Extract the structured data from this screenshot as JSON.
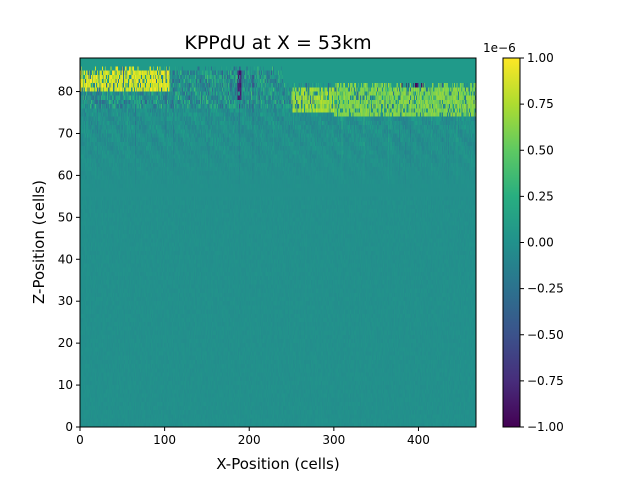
{
  "chart_data": {
    "type": "heatmap",
    "title": "KPPdU at X = 53km",
    "xlabel": "X-Position (cells)",
    "ylabel": "Z-Position (cells)",
    "xlim": [
      0,
      468
    ],
    "ylim": [
      0,
      88
    ],
    "x_ticks": [
      "0",
      "100",
      "200",
      "300",
      "400"
    ],
    "x_tick_values": [
      0,
      100,
      200,
      300,
      400
    ],
    "y_ticks": [
      "0",
      "10",
      "20",
      "30",
      "40",
      "50",
      "60",
      "70",
      "80"
    ],
    "y_tick_values": [
      0,
      10,
      20,
      30,
      40,
      50,
      60,
      70,
      80
    ],
    "colormap": "viridis",
    "colorbar": {
      "min": -1.0,
      "max": 1.0,
      "scale_label": "1e−6",
      "ticks": [
        "−1.00",
        "−0.75",
        "−0.50",
        "−0.25",
        "0.00",
        "0.25",
        "0.50",
        "0.75",
        "1.00"
      ],
      "tick_values": [
        -1.0,
        -0.75,
        -0.5,
        -0.25,
        0.0,
        0.25,
        0.5,
        0.75,
        1.0
      ]
    },
    "field_description": {
      "background_value": 0.0,
      "surface_row_range": [
        76,
        86
      ],
      "surface_values_range": [
        -1.0,
        1.0
      ],
      "active_region_z_range": [
        55,
        88
      ],
      "saturated_patches": [
        {
          "x_range": [
            0,
            105
          ],
          "z_range": [
            80,
            86
          ],
          "value": 1.0
        },
        {
          "x_range": [
            250,
            300
          ],
          "z_range": [
            75,
            80
          ],
          "value": 0.8
        },
        {
          "x_range": [
            300,
            468
          ],
          "z_range": [
            74,
            81
          ],
          "value": 0.7
        },
        {
          "x_range": [
            380,
            405
          ],
          "z_range": [
            81,
            83
          ],
          "value": -1.0
        },
        {
          "x_range": [
            186,
            190
          ],
          "z_range": [
            78,
            84
          ],
          "value": -0.9
        }
      ]
    }
  }
}
